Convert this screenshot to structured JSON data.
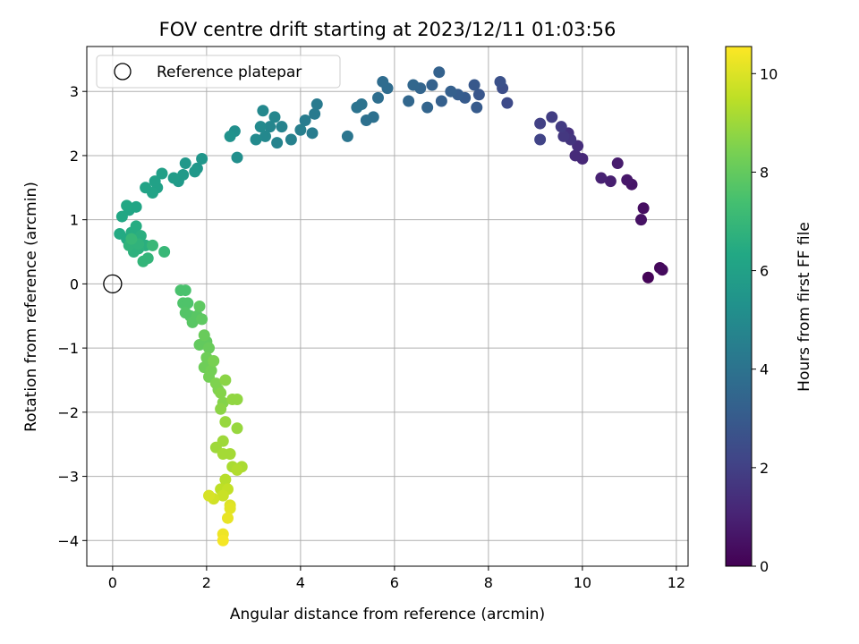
{
  "chart_data": {
    "type": "scatter",
    "title": "FOV centre drift starting at 2023/12/11 01:03:56",
    "xlabel": "Angular distance from reference (arcmin)",
    "ylabel": "Rotation from reference (arcmin)",
    "xlim": [
      -0.55,
      12.25
    ],
    "ylim": [
      -4.4,
      3.7
    ],
    "xticks": [
      0,
      2,
      4,
      6,
      8,
      10,
      12
    ],
    "yticks": [
      -4,
      -3,
      -2,
      -1,
      0,
      1,
      2,
      3
    ],
    "grid": true,
    "legend": {
      "label": "Reference platepar",
      "placement": "top-left"
    },
    "reference_point": {
      "x": 0,
      "y": 0
    },
    "colorbar": {
      "label": "Hours from first FF file",
      "range": [
        0,
        10.55
      ],
      "ticks": [
        0,
        2,
        4,
        6,
        8,
        10
      ],
      "colormap": "viridis"
    },
    "points": [
      [
        11.4,
        0.1,
        0.1
      ],
      [
        11.65,
        0.25,
        0.2
      ],
      [
        11.7,
        0.22,
        0.3
      ],
      [
        11.3,
        1.18,
        0.4
      ],
      [
        11.25,
        1.0,
        0.5
      ],
      [
        11.05,
        1.55,
        0.6
      ],
      [
        10.95,
        1.62,
        0.7
      ],
      [
        10.75,
        1.88,
        0.8
      ],
      [
        10.6,
        1.6,
        0.9
      ],
      [
        10.4,
        1.65,
        1.0
      ],
      [
        10.0,
        1.95,
        1.2
      ],
      [
        9.85,
        2.0,
        1.3
      ],
      [
        9.9,
        2.15,
        1.4
      ],
      [
        9.7,
        2.35,
        1.5
      ],
      [
        9.75,
        2.25,
        1.6
      ],
      [
        9.6,
        2.3,
        1.7
      ],
      [
        9.55,
        2.45,
        1.8
      ],
      [
        9.35,
        2.6,
        1.9
      ],
      [
        9.1,
        2.5,
        2.0
      ],
      [
        9.1,
        2.25,
        2.1
      ],
      [
        8.4,
        2.82,
        2.4
      ],
      [
        8.3,
        3.05,
        2.5
      ],
      [
        8.25,
        3.15,
        2.6
      ],
      [
        7.8,
        2.95,
        2.8
      ],
      [
        7.7,
        3.1,
        2.9
      ],
      [
        7.75,
        2.75,
        3.0
      ],
      [
        7.5,
        2.9,
        3.0
      ],
      [
        7.35,
        2.95,
        3.1
      ],
      [
        7.2,
        3.0,
        3.2
      ],
      [
        7.0,
        2.85,
        3.2
      ],
      [
        6.95,
        3.3,
        3.3
      ],
      [
        6.8,
        3.1,
        3.3
      ],
      [
        6.7,
        2.75,
        3.4
      ],
      [
        6.55,
        3.05,
        3.4
      ],
      [
        6.4,
        3.1,
        3.5
      ],
      [
        6.3,
        2.85,
        3.5
      ],
      [
        5.85,
        3.05,
        3.7
      ],
      [
        5.75,
        3.15,
        3.7
      ],
      [
        5.65,
        2.9,
        3.8
      ],
      [
        5.55,
        2.6,
        3.9
      ],
      [
        5.4,
        2.55,
        3.9
      ],
      [
        5.3,
        2.8,
        4.0
      ],
      [
        5.2,
        2.75,
        4.0
      ],
      [
        5.0,
        2.3,
        4.1
      ],
      [
        4.35,
        2.8,
        4.3
      ],
      [
        4.3,
        2.65,
        4.3
      ],
      [
        4.25,
        2.35,
        4.4
      ],
      [
        4.1,
        2.55,
        4.4
      ],
      [
        4.0,
        2.4,
        4.5
      ],
      [
        3.8,
        2.25,
        4.6
      ],
      [
        3.6,
        2.45,
        4.7
      ],
      [
        3.5,
        2.2,
        4.7
      ],
      [
        3.45,
        2.6,
        4.8
      ],
      [
        3.35,
        2.45,
        4.8
      ],
      [
        3.25,
        2.3,
        4.9
      ],
      [
        3.2,
        2.7,
        4.9
      ],
      [
        3.15,
        2.45,
        5.0
      ],
      [
        3.05,
        2.25,
        5.0
      ],
      [
        2.65,
        1.97,
        5.2
      ],
      [
        2.6,
        2.38,
        5.2
      ],
      [
        2.5,
        2.3,
        5.3
      ],
      [
        1.9,
        1.95,
        5.5
      ],
      [
        1.8,
        1.8,
        5.5
      ],
      [
        1.75,
        1.75,
        5.6
      ],
      [
        1.55,
        1.88,
        5.6
      ],
      [
        1.5,
        1.7,
        5.7
      ],
      [
        1.4,
        1.6,
        5.7
      ],
      [
        1.3,
        1.65,
        5.8
      ],
      [
        1.05,
        1.72,
        5.9
      ],
      [
        0.95,
        1.5,
        6.0
      ],
      [
        0.9,
        1.6,
        6.0
      ],
      [
        0.85,
        1.42,
        6.1
      ],
      [
        0.7,
        1.5,
        6.1
      ],
      [
        0.5,
        1.2,
        6.2
      ],
      [
        0.35,
        1.15,
        6.2
      ],
      [
        0.3,
        1.22,
        6.3
      ],
      [
        0.2,
        1.05,
        6.3
      ],
      [
        0.15,
        0.78,
        6.4
      ],
      [
        0.3,
        0.7,
        6.4
      ],
      [
        0.4,
        0.8,
        6.5
      ],
      [
        0.5,
        0.9,
        6.5
      ],
      [
        0.6,
        0.75,
        6.6
      ],
      [
        0.7,
        0.6,
        6.6
      ],
      [
        0.55,
        0.55,
        6.7
      ],
      [
        0.45,
        0.5,
        6.7
      ],
      [
        0.35,
        0.6,
        6.8
      ],
      [
        0.55,
        0.62,
        6.8
      ],
      [
        0.75,
        0.4,
        6.9
      ],
      [
        0.65,
        0.35,
        6.9
      ],
      [
        0.85,
        0.6,
        7.0
      ],
      [
        1.1,
        0.5,
        7.0
      ],
      [
        0.4,
        0.7,
        7.0
      ],
      [
        1.45,
        -0.1,
        7.5
      ],
      [
        1.55,
        -0.1,
        7.5
      ],
      [
        1.5,
        -0.3,
        7.6
      ],
      [
        1.6,
        -0.3,
        7.6
      ],
      [
        1.55,
        -0.45,
        7.7
      ],
      [
        1.65,
        -0.5,
        7.7
      ],
      [
        1.7,
        -0.6,
        7.8
      ],
      [
        1.8,
        -0.5,
        7.8
      ],
      [
        1.85,
        -0.35,
        7.9
      ],
      [
        1.9,
        -0.55,
        7.9
      ],
      [
        1.85,
        -0.95,
        8.0
      ],
      [
        2.0,
        -0.9,
        8.0
      ],
      [
        1.95,
        -0.8,
        8.1
      ],
      [
        2.05,
        -1.0,
        8.1
      ],
      [
        2.0,
        -1.15,
        8.2
      ],
      [
        1.95,
        -1.3,
        8.2
      ],
      [
        2.1,
        -1.35,
        8.3
      ],
      [
        2.05,
        -1.45,
        8.3
      ],
      [
        2.15,
        -1.2,
        8.4
      ],
      [
        2.2,
        -1.55,
        8.5
      ],
      [
        2.25,
        -1.65,
        8.5
      ],
      [
        2.3,
        -1.7,
        8.6
      ],
      [
        2.35,
        -1.85,
        8.6
      ],
      [
        2.3,
        -1.95,
        8.7
      ],
      [
        2.4,
        -1.5,
        8.7
      ],
      [
        2.55,
        -1.8,
        8.8
      ],
      [
        2.65,
        -1.8,
        8.8
      ],
      [
        2.4,
        -2.15,
        8.9
      ],
      [
        2.65,
        -2.25,
        8.9
      ],
      [
        2.2,
        -2.55,
        9.0
      ],
      [
        2.35,
        -2.45,
        9.0
      ],
      [
        2.35,
        -2.65,
        9.1
      ],
      [
        2.5,
        -2.65,
        9.1
      ],
      [
        2.55,
        -2.85,
        9.2
      ],
      [
        2.75,
        -2.85,
        9.2
      ],
      [
        2.65,
        -2.9,
        9.3
      ],
      [
        2.4,
        -3.05,
        9.4
      ],
      [
        2.3,
        -3.2,
        9.5
      ],
      [
        2.45,
        -3.2,
        9.6
      ],
      [
        2.35,
        -3.3,
        9.7
      ],
      [
        2.15,
        -3.35,
        9.8
      ],
      [
        2.05,
        -3.3,
        9.9
      ],
      [
        2.5,
        -3.45,
        10.0
      ],
      [
        2.5,
        -3.5,
        10.1
      ],
      [
        2.45,
        -3.65,
        10.2
      ],
      [
        2.35,
        -3.9,
        10.3
      ],
      [
        2.35,
        -4.0,
        10.4
      ]
    ]
  }
}
